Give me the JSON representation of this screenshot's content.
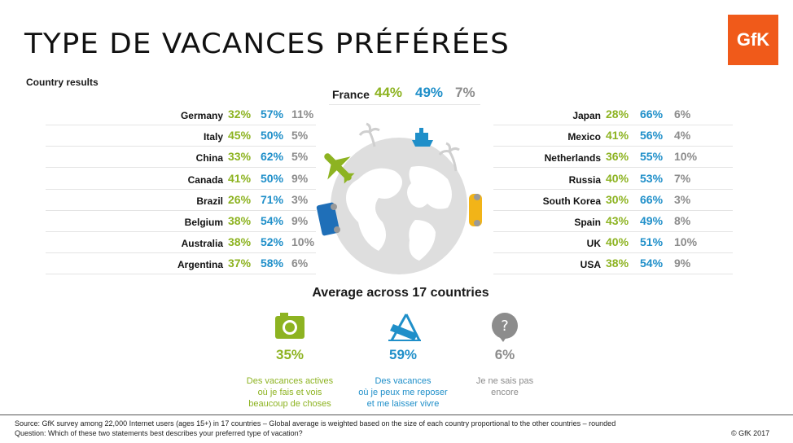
{
  "title": "TYPE DE VACANCES PRÉFÉRÉES",
  "logo_text": "GfK",
  "subtitle": "Country results",
  "colors": {
    "active": "#8db321",
    "relax": "#1f8fc9",
    "dontknow": "#8c8c8c",
    "globe": "#dedede"
  },
  "chart_data": {
    "type": "table",
    "columns": [
      "Des vacances actives où je fais et vois beaucoup de choses",
      "Des vacances où je peux me reposer et me laisser vivre",
      "Je ne sais pas encore"
    ],
    "featured": {
      "country": "France",
      "values": [
        "44%",
        "49%",
        "7%"
      ]
    },
    "left": [
      {
        "country": "Germany",
        "values": [
          "32%",
          "57%",
          "11%"
        ]
      },
      {
        "country": "Italy",
        "values": [
          "45%",
          "50%",
          "5%"
        ]
      },
      {
        "country": "China",
        "values": [
          "33%",
          "62%",
          "5%"
        ]
      },
      {
        "country": "Canada",
        "values": [
          "41%",
          "50%",
          "9%"
        ]
      },
      {
        "country": "Brazil",
        "values": [
          "26%",
          "71%",
          "3%"
        ]
      },
      {
        "country": "Belgium",
        "values": [
          "38%",
          "54%",
          "9%"
        ]
      },
      {
        "country": "Australia",
        "values": [
          "38%",
          "52%",
          "10%"
        ]
      },
      {
        "country": "Argentina",
        "values": [
          "37%",
          "58%",
          "6%"
        ]
      }
    ],
    "right": [
      {
        "country": "Japan",
        "values": [
          "28%",
          "66%",
          "6%"
        ]
      },
      {
        "country": "Mexico",
        "values": [
          "41%",
          "56%",
          "4%"
        ]
      },
      {
        "country": "Netherlands",
        "values": [
          "36%",
          "55%",
          "10%"
        ]
      },
      {
        "country": "Russia",
        "values": [
          "40%",
          "53%",
          "7%"
        ]
      },
      {
        "country": "South Korea",
        "values": [
          "30%",
          "66%",
          "3%"
        ]
      },
      {
        "country": "Spain",
        "values": [
          "43%",
          "49%",
          "8%"
        ]
      },
      {
        "country": "UK",
        "values": [
          "40%",
          "51%",
          "10%"
        ]
      },
      {
        "country": "USA",
        "values": [
          "38%",
          "54%",
          "9%"
        ]
      }
    ],
    "average": {
      "title": "Average across 17 countries",
      "items": [
        {
          "icon": "camera-icon",
          "value": "35%",
          "line1": "Des vacances actives",
          "line2": "où je fais et vois",
          "line3": "beaucoup de choses"
        },
        {
          "icon": "deck-chair-icon",
          "value": "59%",
          "line1": "Des vacances",
          "line2": "où je peux me reposer",
          "line3": "et me laisser vivre"
        },
        {
          "icon": "question-bubble-icon",
          "value": "6%",
          "line1": "Je ne sais pas",
          "line2": "encore",
          "line3": ""
        }
      ]
    }
  },
  "source": "Source: GfK survey among 22,000 Internet users (ages 15+) in 17 countries – Global average is weighted based on the size of each country proportional to the other countries – rounded",
  "question": "Question: Which of these two statements best describes your preferred type of vacation?",
  "copyright": "© GfK 2017"
}
